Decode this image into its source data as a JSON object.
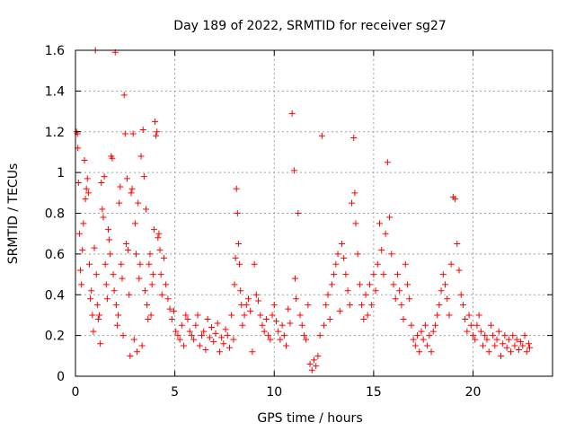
{
  "chart_data": {
    "type": "scatter",
    "title": "Day 189 of 2022, SRMTID for receiver sg27",
    "xlabel": "GPS time / hours",
    "ylabel": "SRMTID / TECUs",
    "xlim": [
      0,
      24
    ],
    "ylim": [
      0,
      1.6
    ],
    "xticks": [
      0,
      5,
      10,
      15,
      20
    ],
    "yticks": [
      0,
      0.2,
      0.4,
      0.6,
      0.8,
      1,
      1.2,
      1.4,
      1.6
    ],
    "xtick_labels": [
      "0",
      "5",
      "10",
      "15",
      "20"
    ],
    "ytick_labels": [
      "0",
      "0.2",
      "0.4",
      "0.6",
      "0.8",
      "1",
      "1.2",
      "1.4",
      "1.6"
    ],
    "grid": true,
    "marker": "+",
    "color": "#ff0000",
    "series": [
      {
        "name": "SRMTID",
        "points": [
          [
            0.05,
            1.2
          ],
          [
            0.1,
            1.19
          ],
          [
            0.12,
            1.12
          ],
          [
            0.15,
            0.95
          ],
          [
            0.2,
            0.7
          ],
          [
            0.25,
            0.52
          ],
          [
            0.3,
            0.45
          ],
          [
            0.35,
            0.62
          ],
          [
            0.4,
            0.75
          ],
          [
            0.45,
            1.06
          ],
          [
            0.5,
            0.87
          ],
          [
            0.55,
            0.92
          ],
          [
            0.6,
            0.97
          ],
          [
            0.65,
            0.9
          ],
          [
            0.7,
            0.55
          ],
          [
            0.75,
            0.38
          ],
          [
            0.8,
            0.42
          ],
          [
            0.85,
            0.3
          ],
          [
            0.9,
            0.22
          ],
          [
            0.95,
            0.63
          ],
          [
            1.0,
            1.6
          ],
          [
            1.05,
            0.5
          ],
          [
            1.1,
            0.35
          ],
          [
            1.15,
            0.28
          ],
          [
            1.2,
            0.3
          ],
          [
            1.25,
            0.16
          ],
          [
            1.3,
            0.95
          ],
          [
            1.35,
            0.82
          ],
          [
            1.4,
            0.78
          ],
          [
            1.45,
            0.98
          ],
          [
            1.5,
            0.55
          ],
          [
            1.55,
            0.45
          ],
          [
            1.6,
            0.38
          ],
          [
            1.65,
            0.72
          ],
          [
            1.7,
            0.67
          ],
          [
            1.75,
            0.6
          ],
          [
            1.8,
            1.08
          ],
          [
            1.85,
            1.07
          ],
          [
            1.9,
            0.5
          ],
          [
            1.95,
            0.42
          ],
          [
            2.0,
            1.59
          ],
          [
            2.05,
            0.35
          ],
          [
            2.1,
            0.25
          ],
          [
            2.15,
            0.3
          ],
          [
            2.2,
            0.85
          ],
          [
            2.25,
            0.93
          ],
          [
            2.3,
            0.55
          ],
          [
            2.35,
            0.48
          ],
          [
            2.4,
            0.2
          ],
          [
            2.45,
            1.38
          ],
          [
            2.5,
            1.19
          ],
          [
            2.55,
            0.65
          ],
          [
            2.6,
            0.97
          ],
          [
            2.65,
            0.62
          ],
          [
            2.7,
            0.4
          ],
          [
            2.75,
            0.1
          ],
          [
            2.8,
            0.9
          ],
          [
            2.85,
            0.92
          ],
          [
            2.9,
            1.19
          ],
          [
            2.95,
            0.18
          ],
          [
            3.0,
            0.75
          ],
          [
            3.05,
            0.6
          ],
          [
            3.1,
            0.12
          ],
          [
            3.15,
            0.85
          ],
          [
            3.2,
            0.48
          ],
          [
            3.25,
            0.55
          ],
          [
            3.3,
            1.08
          ],
          [
            3.35,
            0.15
          ],
          [
            3.4,
            1.21
          ],
          [
            3.45,
            0.98
          ],
          [
            3.5,
            0.42
          ],
          [
            3.55,
            0.82
          ],
          [
            3.6,
            0.35
          ],
          [
            3.65,
            0.28
          ],
          [
            3.7,
            0.55
          ],
          [
            3.75,
            0.6
          ],
          [
            3.8,
            0.3
          ],
          [
            3.85,
            0.45
          ],
          [
            3.9,
            0.5
          ],
          [
            3.95,
            0.72
          ],
          [
            4.0,
            1.25
          ],
          [
            4.05,
            1.18
          ],
          [
            4.1,
            1.2
          ],
          [
            4.15,
            0.68
          ],
          [
            4.2,
            0.7
          ],
          [
            4.25,
            0.62
          ],
          [
            4.3,
            0.5
          ],
          [
            4.35,
            0.4
          ],
          [
            4.45,
            0.58
          ],
          [
            4.55,
            0.45
          ],
          [
            4.65,
            0.38
          ],
          [
            4.75,
            0.33
          ],
          [
            4.85,
            0.28
          ],
          [
            4.95,
            0.32
          ],
          [
            5.05,
            0.22
          ],
          [
            5.15,
            0.2
          ],
          [
            5.25,
            0.18
          ],
          [
            5.35,
            0.25
          ],
          [
            5.45,
            0.15
          ],
          [
            5.55,
            0.3
          ],
          [
            5.65,
            0.28
          ],
          [
            5.75,
            0.22
          ],
          [
            5.85,
            0.2
          ],
          [
            5.95,
            0.18
          ],
          [
            6.05,
            0.25
          ],
          [
            6.15,
            0.3
          ],
          [
            6.25,
            0.15
          ],
          [
            6.35,
            0.2
          ],
          [
            6.45,
            0.22
          ],
          [
            6.55,
            0.13
          ],
          [
            6.65,
            0.28
          ],
          [
            6.75,
            0.19
          ],
          [
            6.85,
            0.24
          ],
          [
            6.95,
            0.17
          ],
          [
            7.05,
            0.21
          ],
          [
            7.15,
            0.26
          ],
          [
            7.25,
            0.12
          ],
          [
            7.35,
            0.19
          ],
          [
            7.45,
            0.16
          ],
          [
            7.55,
            0.23
          ],
          [
            7.65,
            0.2
          ],
          [
            7.75,
            0.14
          ],
          [
            7.85,
            0.3
          ],
          [
            7.95,
            0.18
          ],
          [
            8.0,
            0.45
          ],
          [
            8.05,
            0.58
          ],
          [
            8.1,
            0.92
          ],
          [
            8.15,
            0.8
          ],
          [
            8.2,
            0.65
          ],
          [
            8.25,
            0.55
          ],
          [
            8.3,
            0.42
          ],
          [
            8.35,
            0.35
          ],
          [
            8.4,
            0.25
          ],
          [
            8.5,
            0.3
          ],
          [
            8.6,
            0.35
          ],
          [
            8.7,
            0.38
          ],
          [
            8.8,
            0.32
          ],
          [
            8.9,
            0.12
          ],
          [
            9.0,
            0.55
          ],
          [
            9.1,
            0.4
          ],
          [
            9.2,
            0.37
          ],
          [
            9.3,
            0.3
          ],
          [
            9.4,
            0.25
          ],
          [
            9.5,
            0.22
          ],
          [
            9.6,
            0.28
          ],
          [
            9.7,
            0.2
          ],
          [
            9.8,
            0.18
          ],
          [
            9.9,
            0.3
          ],
          [
            10.0,
            0.35
          ],
          [
            10.1,
            0.27
          ],
          [
            10.2,
            0.22
          ],
          [
            10.3,
            0.18
          ],
          [
            10.4,
            0.25
          ],
          [
            10.5,
            0.2
          ],
          [
            10.6,
            0.15
          ],
          [
            10.7,
            0.33
          ],
          [
            10.8,
            0.26
          ],
          [
            10.9,
            1.29
          ],
          [
            11.0,
            1.01
          ],
          [
            11.05,
            0.48
          ],
          [
            11.1,
            0.38
          ],
          [
            11.2,
            0.8
          ],
          [
            11.3,
            0.3
          ],
          [
            11.4,
            0.25
          ],
          [
            11.5,
            0.2
          ],
          [
            11.6,
            0.18
          ],
          [
            11.7,
            0.35
          ],
          [
            11.8,
            0.06
          ],
          [
            11.9,
            0.03
          ],
          [
            12.0,
            0.08
          ],
          [
            12.1,
            0.05
          ],
          [
            12.2,
            0.1
          ],
          [
            12.3,
            0.2
          ],
          [
            12.4,
            1.18
          ],
          [
            12.5,
            0.25
          ],
          [
            12.6,
            0.35
          ],
          [
            12.7,
            0.4
          ],
          [
            12.8,
            0.28
          ],
          [
            12.9,
            0.45
          ],
          [
            13.0,
            0.5
          ],
          [
            13.1,
            0.55
          ],
          [
            13.2,
            0.6
          ],
          [
            13.3,
            0.32
          ],
          [
            13.4,
            0.65
          ],
          [
            13.5,
            0.58
          ],
          [
            13.6,
            0.5
          ],
          [
            13.7,
            0.42
          ],
          [
            13.8,
            0.35
          ],
          [
            13.9,
            0.85
          ],
          [
            14.0,
            1.17
          ],
          [
            14.05,
            0.9
          ],
          [
            14.1,
            0.75
          ],
          [
            14.2,
            0.6
          ],
          [
            14.3,
            0.45
          ],
          [
            14.4,
            0.35
          ],
          [
            14.5,
            0.28
          ],
          [
            14.6,
            0.4
          ],
          [
            14.7,
            0.3
          ],
          [
            14.8,
            0.45
          ],
          [
            14.9,
            0.35
          ],
          [
            15.0,
            0.5
          ],
          [
            15.1,
            0.42
          ],
          [
            15.2,
            0.55
          ],
          [
            15.3,
            0.75
          ],
          [
            15.4,
            0.62
          ],
          [
            15.5,
            0.5
          ],
          [
            15.6,
            0.7
          ],
          [
            15.7,
            1.05
          ],
          [
            15.8,
            0.78
          ],
          [
            15.9,
            0.6
          ],
          [
            16.0,
            0.45
          ],
          [
            16.1,
            0.38
          ],
          [
            16.2,
            0.5
          ],
          [
            16.3,
            0.42
          ],
          [
            16.4,
            0.35
          ],
          [
            16.5,
            0.28
          ],
          [
            16.6,
            0.55
          ],
          [
            16.7,
            0.45
          ],
          [
            16.8,
            0.38
          ],
          [
            16.9,
            0.25
          ],
          [
            17.0,
            0.18
          ],
          [
            17.1,
            0.15
          ],
          [
            17.2,
            0.2
          ],
          [
            17.3,
            0.12
          ],
          [
            17.4,
            0.22
          ],
          [
            17.5,
            0.18
          ],
          [
            17.6,
            0.25
          ],
          [
            17.7,
            0.15
          ],
          [
            17.8,
            0.2
          ],
          [
            17.9,
            0.12
          ],
          [
            18.0,
            0.22
          ],
          [
            18.1,
            0.25
          ],
          [
            18.2,
            0.3
          ],
          [
            18.3,
            0.35
          ],
          [
            18.4,
            0.42
          ],
          [
            18.5,
            0.5
          ],
          [
            18.6,
            0.45
          ],
          [
            18.7,
            0.38
          ],
          [
            18.8,
            0.3
          ],
          [
            18.9,
            0.55
          ],
          [
            19.0,
            0.88
          ],
          [
            19.1,
            0.87
          ],
          [
            19.2,
            0.65
          ],
          [
            19.3,
            0.52
          ],
          [
            19.4,
            0.4
          ],
          [
            19.5,
            0.35
          ],
          [
            19.6,
            0.28
          ],
          [
            19.7,
            0.22
          ],
          [
            19.8,
            0.3
          ],
          [
            19.9,
            0.25
          ],
          [
            20.0,
            0.2
          ],
          [
            20.1,
            0.18
          ],
          [
            20.2,
            0.25
          ],
          [
            20.3,
            0.3
          ],
          [
            20.4,
            0.22
          ],
          [
            20.5,
            0.15
          ],
          [
            20.6,
            0.2
          ],
          [
            20.7,
            0.18
          ],
          [
            20.8,
            0.12
          ],
          [
            20.9,
            0.25
          ],
          [
            21.0,
            0.2
          ],
          [
            21.1,
            0.15
          ],
          [
            21.2,
            0.18
          ],
          [
            21.3,
            0.22
          ],
          [
            21.4,
            0.1
          ],
          [
            21.5,
            0.16
          ],
          [
            21.6,
            0.2
          ],
          [
            21.7,
            0.14
          ],
          [
            21.8,
            0.18
          ],
          [
            21.9,
            0.12
          ],
          [
            22.0,
            0.2
          ],
          [
            22.1,
            0.15
          ],
          [
            22.2,
            0.18
          ],
          [
            22.3,
            0.13
          ],
          [
            22.4,
            0.17
          ],
          [
            22.5,
            0.15
          ],
          [
            22.6,
            0.2
          ],
          [
            22.7,
            0.12
          ],
          [
            22.8,
            0.16
          ],
          [
            22.85,
            0.14
          ]
        ]
      }
    ]
  }
}
